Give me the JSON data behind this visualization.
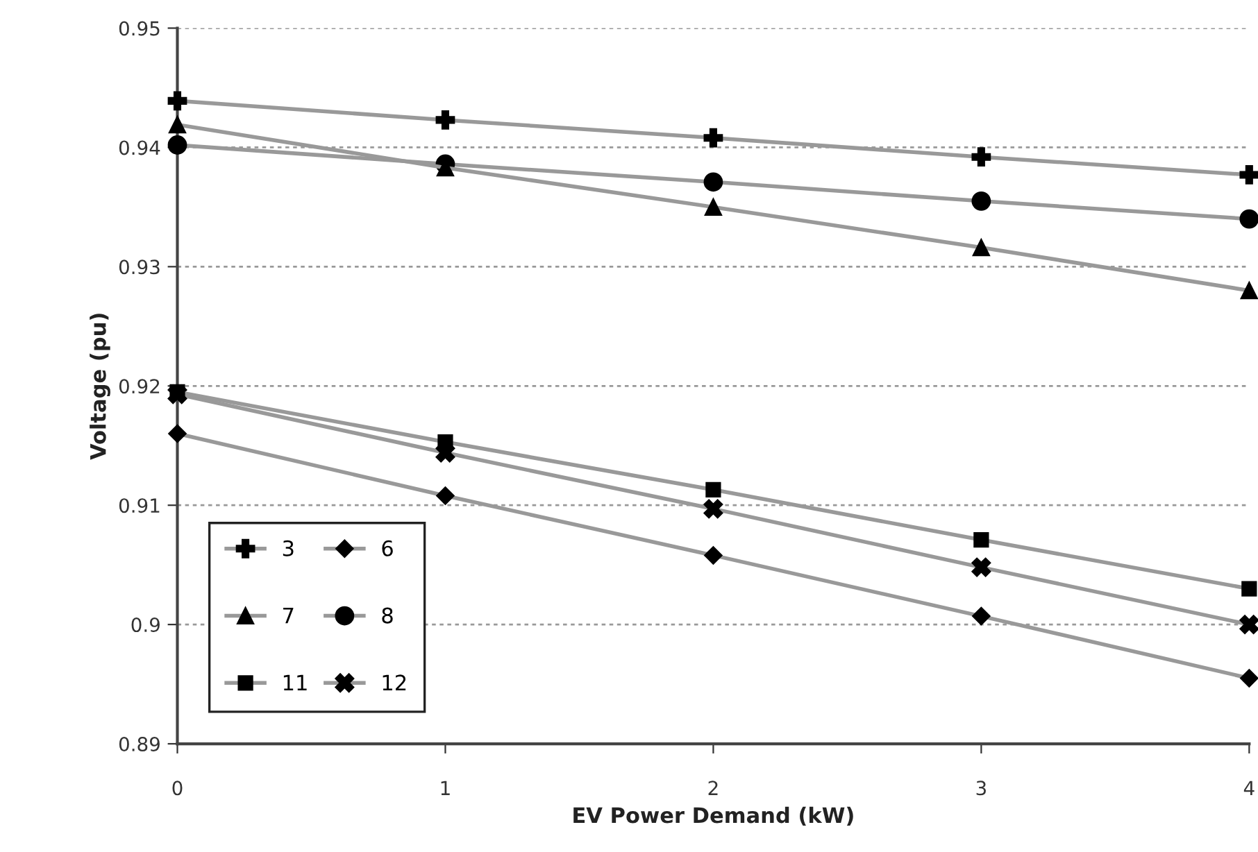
{
  "chart_data": {
    "type": "line",
    "xlabel": "EV Power Demand (kW)",
    "ylabel": "Voltage (pu)",
    "x": [
      0,
      1,
      2,
      3,
      4
    ],
    "xlim": [
      0,
      4
    ],
    "xticks": [
      0,
      1,
      2,
      3,
      4
    ],
    "ylim": [
      0.89,
      0.95
    ],
    "yticks": [
      {
        "value": 0.89,
        "label": "0.89"
      },
      {
        "value": 0.9,
        "label": "0.9"
      },
      {
        "value": 0.91,
        "label": "0.91"
      },
      {
        "value": 0.92,
        "label": "0.92"
      },
      {
        "value": 0.93,
        "label": "0.93"
      },
      {
        "value": 0.94,
        "label": "0.94"
      },
      {
        "value": 0.95,
        "label": "0.95"
      }
    ],
    "grid": "y",
    "legend": "bottom left",
    "series": [
      {
        "name": "3",
        "color": "#000000",
        "marker": "plus",
        "values": [
          0.9439,
          0.9423,
          0.9408,
          0.9392,
          0.9377
        ]
      },
      {
        "name": "6",
        "color": "#000000",
        "marker": "diamond",
        "values": [
          0.916,
          0.9108,
          0.9058,
          0.9007,
          0.8955
        ]
      },
      {
        "name": "7",
        "color": "#000000",
        "marker": "triangle",
        "values": [
          0.9419,
          0.9383,
          0.935,
          0.9316,
          0.928
        ]
      },
      {
        "name": "8",
        "color": "#000000",
        "marker": "circle",
        "values": [
          0.9402,
          0.9386,
          0.9371,
          0.9355,
          0.934
        ]
      },
      {
        "name": "11",
        "color": "#000000",
        "marker": "square",
        "values": [
          0.9195,
          0.9153,
          0.9113,
          0.9071,
          0.903
        ]
      },
      {
        "name": "12",
        "color": "#000000",
        "marker": "cross",
        "values": [
          0.9193,
          0.9144,
          0.9097,
          0.9048,
          0.9
        ]
      }
    ]
  }
}
